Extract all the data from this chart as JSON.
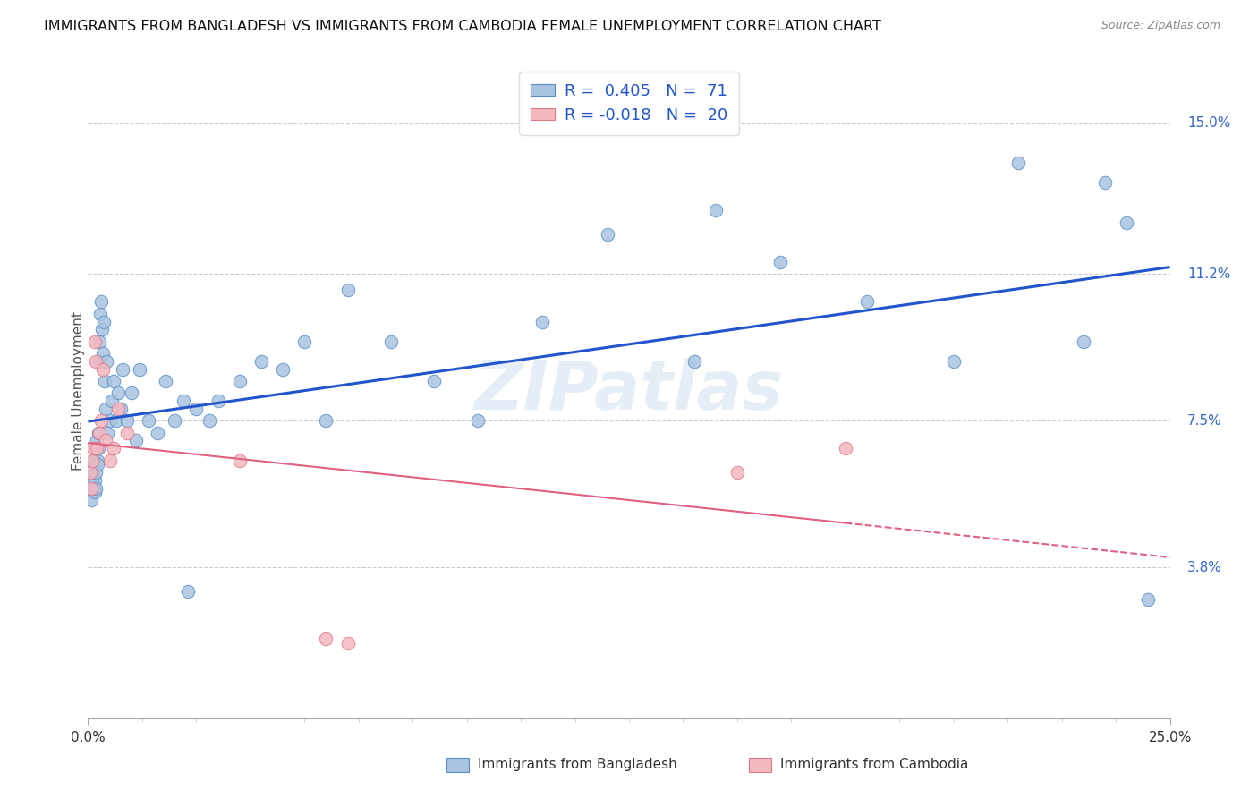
{
  "title": "IMMIGRANTS FROM BANGLADESH VS IMMIGRANTS FROM CAMBODIA FEMALE UNEMPLOYMENT CORRELATION CHART",
  "source": "Source: ZipAtlas.com",
  "ylabel": "Female Unemployment",
  "ytick_labels": [
    "3.8%",
    "7.5%",
    "11.2%",
    "15.0%"
  ],
  "ytick_values": [
    3.8,
    7.5,
    11.2,
    15.0
  ],
  "xlim": [
    0.0,
    25.0
  ],
  "ylim": [
    0.0,
    16.5
  ],
  "bangladesh_color": "#a8c4e0",
  "cambodia_color": "#f4b8c1",
  "bangladesh_edge": "#5b8ec4",
  "cambodia_edge": "#e07888",
  "trendline_bangladesh": "#2255cc",
  "trendline_cambodia": "#e06080",
  "watermark": "ZIPatlas",
  "legend_R_bangladesh": "0.405",
  "legend_N_bangladesh": "71",
  "legend_R_cambodia": "-0.018",
  "legend_N_cambodia": "20",
  "bang_x": [
    0.05,
    0.07,
    0.08,
    0.09,
    0.1,
    0.1,
    0.12,
    0.13,
    0.14,
    0.15,
    0.16,
    0.17,
    0.18,
    0.19,
    0.2,
    0.21,
    0.22,
    0.23,
    0.24,
    0.25,
    0.26,
    0.28,
    0.3,
    0.32,
    0.34,
    0.36,
    0.38,
    0.4,
    0.42,
    0.45,
    0.5,
    0.55,
    0.6,
    0.65,
    0.7,
    0.75,
    0.8,
    0.9,
    1.0,
    1.1,
    1.2,
    1.4,
    1.6,
    1.8,
    2.0,
    2.2,
    2.5,
    2.8,
    3.0,
    3.5,
    4.0,
    4.5,
    5.0,
    5.5,
    6.0,
    7.0,
    8.0,
    9.0,
    10.5,
    12.0,
    14.0,
    16.0,
    18.0,
    20.0,
    21.5,
    23.0,
    23.5,
    24.0,
    24.5,
    14.5,
    2.3
  ],
  "bang_y": [
    5.8,
    6.2,
    5.5,
    6.0,
    6.3,
    5.9,
    6.1,
    5.8,
    6.5,
    6.0,
    5.7,
    5.8,
    6.2,
    6.8,
    7.0,
    6.5,
    6.4,
    6.8,
    7.2,
    9.0,
    9.5,
    10.2,
    10.5,
    9.8,
    9.2,
    10.0,
    8.5,
    7.8,
    9.0,
    7.2,
    7.5,
    8.0,
    8.5,
    7.5,
    8.2,
    7.8,
    8.8,
    7.5,
    8.2,
    7.0,
    8.8,
    7.5,
    7.2,
    8.5,
    7.5,
    8.0,
    7.8,
    7.5,
    8.0,
    8.5,
    9.0,
    8.8,
    9.5,
    7.5,
    10.8,
    9.5,
    8.5,
    7.5,
    10.0,
    12.2,
    9.0,
    11.5,
    10.5,
    9.0,
    14.0,
    9.5,
    13.5,
    12.5,
    3.0,
    12.8,
    3.2
  ],
  "camb_x": [
    0.05,
    0.08,
    0.1,
    0.12,
    0.15,
    0.18,
    0.2,
    0.25,
    0.3,
    0.35,
    0.4,
    0.5,
    0.6,
    0.7,
    0.9,
    3.5,
    5.5,
    6.0,
    15.0,
    17.5
  ],
  "camb_y": [
    6.2,
    5.8,
    6.5,
    6.8,
    9.5,
    9.0,
    6.8,
    7.2,
    7.5,
    8.8,
    7.0,
    6.5,
    6.8,
    7.8,
    7.2,
    6.5,
    2.0,
    1.9,
    6.2,
    6.8
  ]
}
